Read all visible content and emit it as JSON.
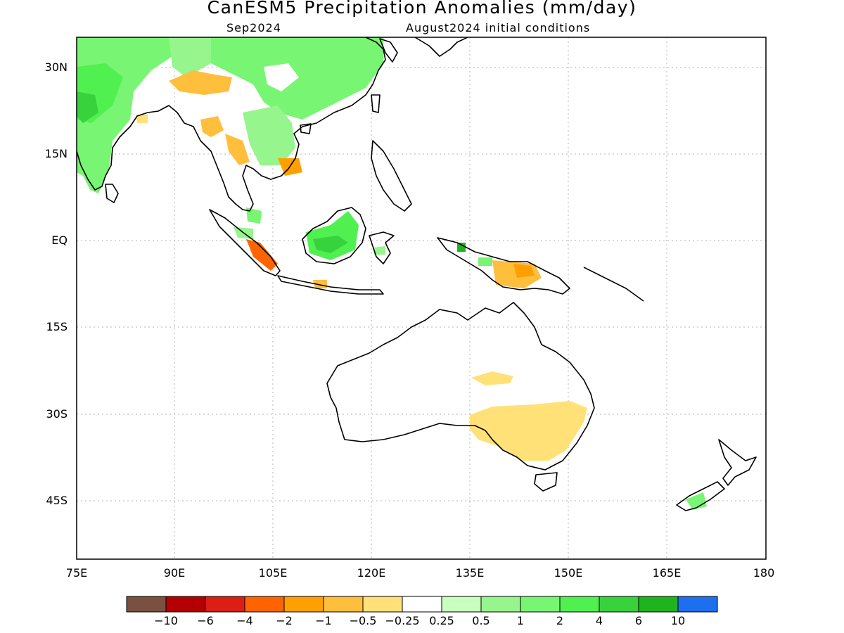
{
  "title": "CanESM5 Precipitation Anomalies (mm/day)",
  "subtitle_left": "Sep2024",
  "subtitle_right": "August2024 initial conditions",
  "axes": {
    "x_ticks": [
      "75E",
      "90E",
      "105E",
      "120E",
      "135E",
      "150E",
      "165E",
      "180"
    ],
    "y_ticks": [
      "30N",
      "15N",
      "EQ",
      "15S",
      "30S",
      "45S"
    ]
  },
  "colorbar": {
    "colors": [
      "#7a5040",
      "#b40000",
      "#dc1e14",
      "#ff6400",
      "#ffa000",
      "#ffbe3c",
      "#ffe178",
      "#ffffff",
      "#c8ffbe",
      "#96f58c",
      "#78f573",
      "#50f050",
      "#37d23c",
      "#1eb41e",
      "#1e6ef0"
    ],
    "labels": [
      "−10",
      "−6",
      "−4",
      "−2",
      "−1",
      "−0.5",
      "−0.25",
      "0.25",
      "0.5",
      "1",
      "2",
      "4",
      "6",
      "10"
    ]
  }
}
